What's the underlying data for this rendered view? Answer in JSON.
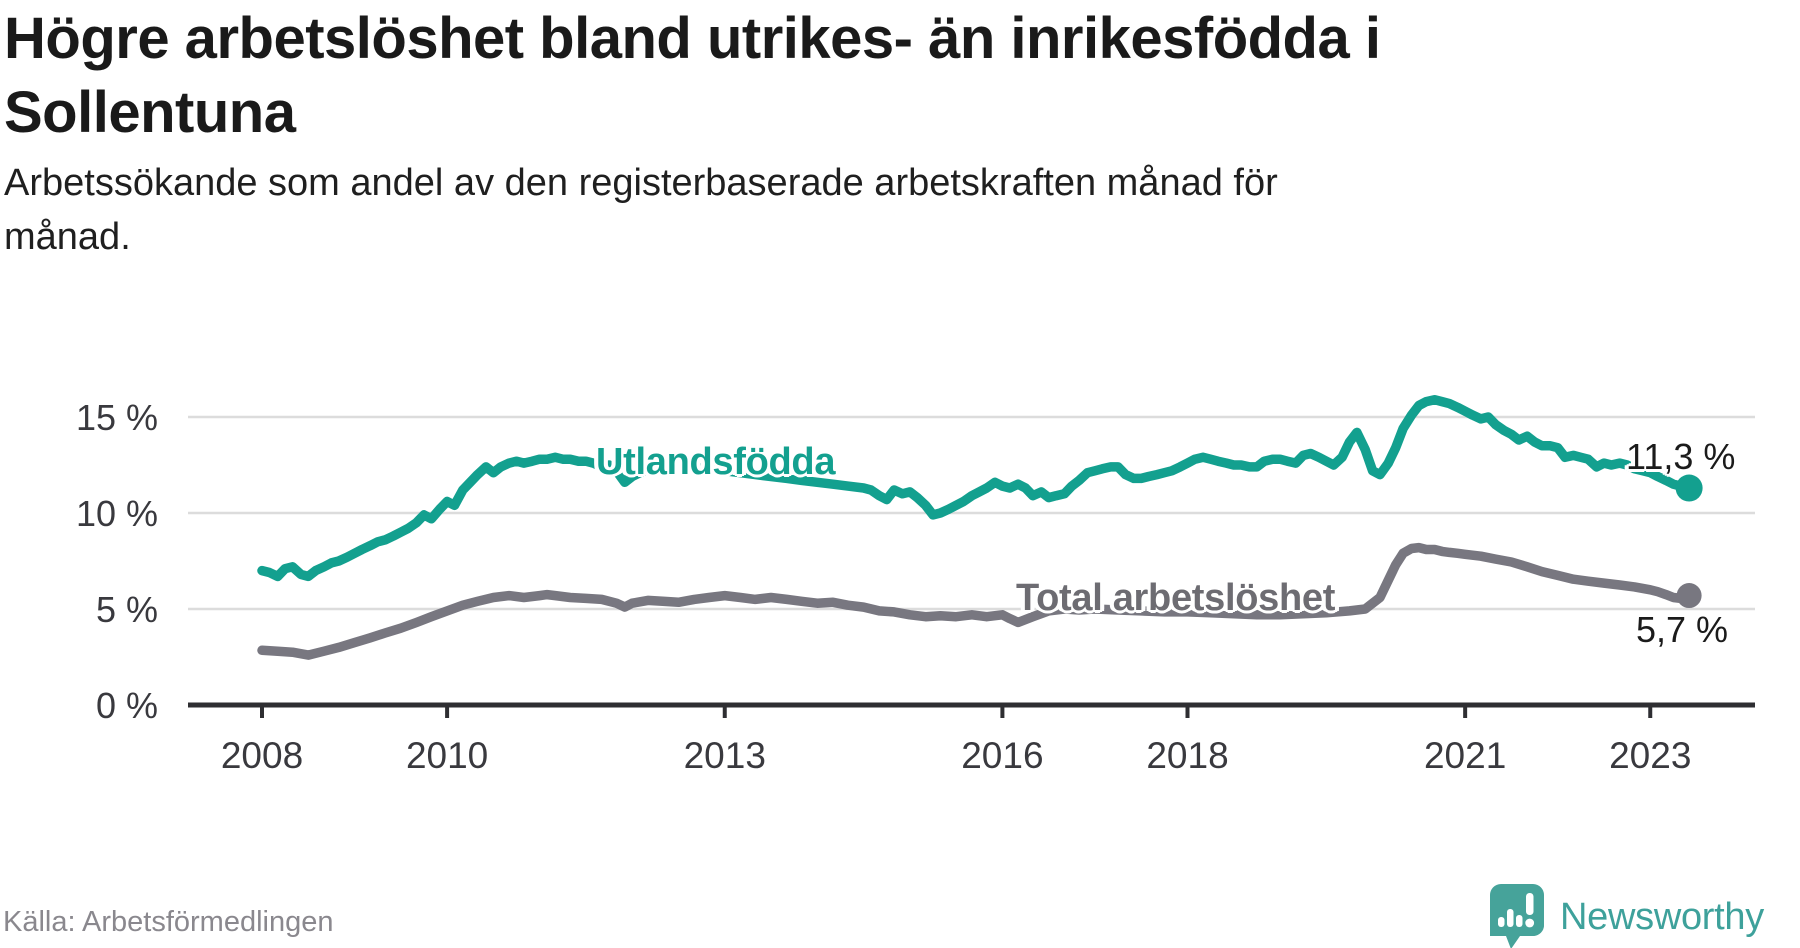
{
  "header": {
    "title": "Högre arbetslöshet bland utrikes- än inrikesfödda i\nSollentuna",
    "subtitle": "Arbetssökande som andel av den registerbaserade arbetskraften månad för\nmånad."
  },
  "footer": {
    "source": "Källa: Arbetsförmedlingen",
    "brand": "Newsworthy"
  },
  "colors": {
    "accent_teal": "#13A08F",
    "line_gray": "#787780",
    "label_gray": "#6D6C72",
    "axis_dark": "#2E2E32",
    "tick_text": "#39393E",
    "gridline": "#DCDCDC",
    "brand_teal": "#46A39A"
  },
  "chart_data": {
    "type": "line",
    "title": "Högre arbetslöshet bland utrikes- än inrikesfödda i Sollentuna",
    "subtitle": "Arbetssökande som andel av den registerbaserade arbetskraften månad för månad.",
    "source": "Källa: Arbetsförmedlingen",
    "grid": "horizontal-only",
    "legend_position": "inline-labels",
    "x_axis": {
      "ticks": [
        2008,
        2010,
        2013,
        2016,
        2018,
        2021,
        2023
      ],
      "range": [
        2007.2,
        2024.1
      ]
    },
    "y_axis": {
      "ticks": [
        0,
        5,
        10,
        15
      ],
      "tick_suffix": " %",
      "range": [
        0,
        17
      ],
      "unit": "percent"
    },
    "series": [
      {
        "name": "Utlandsfödda",
        "color": "#13A08F",
        "end_label": "11,3 %",
        "end_value": 11.3,
        "points": [
          [
            2008.0,
            7.0
          ],
          [
            2008.08,
            6.9
          ],
          [
            2008.17,
            6.7
          ],
          [
            2008.25,
            7.1
          ],
          [
            2008.33,
            7.2
          ],
          [
            2008.42,
            6.8
          ],
          [
            2008.5,
            6.7
          ],
          [
            2008.58,
            7.0
          ],
          [
            2008.67,
            7.2
          ],
          [
            2008.75,
            7.4
          ],
          [
            2008.83,
            7.5
          ],
          [
            2008.92,
            7.7
          ],
          [
            2009.0,
            7.9
          ],
          [
            2009.08,
            8.1
          ],
          [
            2009.17,
            8.3
          ],
          [
            2009.25,
            8.5
          ],
          [
            2009.33,
            8.6
          ],
          [
            2009.42,
            8.8
          ],
          [
            2009.5,
            9.0
          ],
          [
            2009.58,
            9.2
          ],
          [
            2009.67,
            9.5
          ],
          [
            2009.75,
            9.9
          ],
          [
            2009.83,
            9.7
          ],
          [
            2009.92,
            10.2
          ],
          [
            2010.0,
            10.6
          ],
          [
            2010.08,
            10.4
          ],
          [
            2010.17,
            11.2
          ],
          [
            2010.25,
            11.6
          ],
          [
            2010.33,
            12.0
          ],
          [
            2010.42,
            12.4
          ],
          [
            2010.5,
            12.1
          ],
          [
            2010.58,
            12.4
          ],
          [
            2010.67,
            12.6
          ],
          [
            2010.75,
            12.7
          ],
          [
            2010.83,
            12.6
          ],
          [
            2010.92,
            12.7
          ],
          [
            2011.0,
            12.8
          ],
          [
            2011.08,
            12.8
          ],
          [
            2011.17,
            12.9
          ],
          [
            2011.25,
            12.8
          ],
          [
            2011.33,
            12.8
          ],
          [
            2011.42,
            12.7
          ],
          [
            2011.5,
            12.7
          ],
          [
            2011.58,
            12.6
          ],
          [
            2011.67,
            12.4
          ],
          [
            2011.75,
            12.5
          ],
          [
            2011.83,
            12.2
          ],
          [
            2011.92,
            11.6
          ],
          [
            2012.0,
            11.9
          ],
          [
            2012.17,
            12.3
          ],
          [
            2012.33,
            12.4
          ],
          [
            2012.5,
            12.3
          ],
          [
            2012.67,
            12.4
          ],
          [
            2012.83,
            12.3
          ],
          [
            2013.0,
            12.2
          ],
          [
            2013.17,
            12.1
          ],
          [
            2013.33,
            12.0
          ],
          [
            2013.5,
            11.9
          ],
          [
            2013.67,
            11.8
          ],
          [
            2013.83,
            11.7
          ],
          [
            2014.0,
            11.6
          ],
          [
            2014.17,
            11.5
          ],
          [
            2014.33,
            11.4
          ],
          [
            2014.5,
            11.3
          ],
          [
            2014.58,
            11.2
          ],
          [
            2014.67,
            10.9
          ],
          [
            2014.75,
            10.7
          ],
          [
            2014.83,
            11.2
          ],
          [
            2014.92,
            11.0
          ],
          [
            2015.0,
            11.1
          ],
          [
            2015.08,
            10.8
          ],
          [
            2015.17,
            10.4
          ],
          [
            2015.25,
            9.9
          ],
          [
            2015.33,
            10.0
          ],
          [
            2015.42,
            10.2
          ],
          [
            2015.5,
            10.4
          ],
          [
            2015.58,
            10.6
          ],
          [
            2015.67,
            10.9
          ],
          [
            2015.75,
            11.1
          ],
          [
            2015.83,
            11.3
          ],
          [
            2015.92,
            11.6
          ],
          [
            2016.0,
            11.4
          ],
          [
            2016.08,
            11.3
          ],
          [
            2016.17,
            11.5
          ],
          [
            2016.25,
            11.3
          ],
          [
            2016.33,
            10.9
          ],
          [
            2016.42,
            11.1
          ],
          [
            2016.5,
            10.8
          ],
          [
            2016.58,
            10.9
          ],
          [
            2016.67,
            11.0
          ],
          [
            2016.75,
            11.4
          ],
          [
            2016.83,
            11.7
          ],
          [
            2016.92,
            12.1
          ],
          [
            2017.0,
            12.2
          ],
          [
            2017.08,
            12.3
          ],
          [
            2017.17,
            12.4
          ],
          [
            2017.25,
            12.4
          ],
          [
            2017.33,
            12.0
          ],
          [
            2017.42,
            11.8
          ],
          [
            2017.5,
            11.8
          ],
          [
            2017.58,
            11.9
          ],
          [
            2017.67,
            12.0
          ],
          [
            2017.75,
            12.1
          ],
          [
            2017.83,
            12.2
          ],
          [
            2017.92,
            12.4
          ],
          [
            2018.0,
            12.6
          ],
          [
            2018.08,
            12.8
          ],
          [
            2018.17,
            12.9
          ],
          [
            2018.25,
            12.8
          ],
          [
            2018.33,
            12.7
          ],
          [
            2018.42,
            12.6
          ],
          [
            2018.5,
            12.5
          ],
          [
            2018.58,
            12.5
          ],
          [
            2018.67,
            12.4
          ],
          [
            2018.75,
            12.4
          ],
          [
            2018.83,
            12.7
          ],
          [
            2018.92,
            12.8
          ],
          [
            2019.0,
            12.8
          ],
          [
            2019.08,
            12.7
          ],
          [
            2019.17,
            12.6
          ],
          [
            2019.25,
            13.0
          ],
          [
            2019.33,
            13.1
          ],
          [
            2019.42,
            12.9
          ],
          [
            2019.5,
            12.7
          ],
          [
            2019.58,
            12.5
          ],
          [
            2019.67,
            12.9
          ],
          [
            2019.75,
            13.7
          ],
          [
            2019.83,
            14.2
          ],
          [
            2019.92,
            13.3
          ],
          [
            2020.0,
            12.2
          ],
          [
            2020.08,
            12.0
          ],
          [
            2020.17,
            12.6
          ],
          [
            2020.25,
            13.4
          ],
          [
            2020.33,
            14.4
          ],
          [
            2020.42,
            15.1
          ],
          [
            2020.5,
            15.6
          ],
          [
            2020.58,
            15.8
          ],
          [
            2020.67,
            15.9
          ],
          [
            2020.75,
            15.8
          ],
          [
            2020.83,
            15.7
          ],
          [
            2020.92,
            15.5
          ],
          [
            2021.0,
            15.3
          ],
          [
            2021.08,
            15.1
          ],
          [
            2021.17,
            14.9
          ],
          [
            2021.25,
            15.0
          ],
          [
            2021.33,
            14.6
          ],
          [
            2021.42,
            14.3
          ],
          [
            2021.5,
            14.1
          ],
          [
            2021.58,
            13.8
          ],
          [
            2021.67,
            14.0
          ],
          [
            2021.75,
            13.7
          ],
          [
            2021.83,
            13.5
          ],
          [
            2021.92,
            13.5
          ],
          [
            2022.0,
            13.4
          ],
          [
            2022.08,
            12.9
          ],
          [
            2022.17,
            13.0
          ],
          [
            2022.25,
            12.9
          ],
          [
            2022.33,
            12.8
          ],
          [
            2022.42,
            12.4
          ],
          [
            2022.5,
            12.6
          ],
          [
            2022.58,
            12.5
          ],
          [
            2022.67,
            12.6
          ],
          [
            2022.75,
            12.5
          ],
          [
            2022.83,
            12.3
          ],
          [
            2022.92,
            12.2
          ],
          [
            2023.0,
            12.1
          ],
          [
            2023.08,
            11.9
          ],
          [
            2023.17,
            11.7
          ],
          [
            2023.25,
            11.5
          ],
          [
            2023.33,
            11.4
          ],
          [
            2023.42,
            11.3
          ]
        ]
      },
      {
        "name": "Total arbetslöshet",
        "color": "#787780",
        "end_label": "5,7 %",
        "end_value": 5.7,
        "points": [
          [
            2008.0,
            2.85
          ],
          [
            2008.17,
            2.8
          ],
          [
            2008.33,
            2.75
          ],
          [
            2008.5,
            2.6
          ],
          [
            2008.67,
            2.8
          ],
          [
            2008.83,
            3.0
          ],
          [
            2009.0,
            3.25
          ],
          [
            2009.17,
            3.5
          ],
          [
            2009.33,
            3.75
          ],
          [
            2009.5,
            4.0
          ],
          [
            2009.67,
            4.3
          ],
          [
            2009.83,
            4.6
          ],
          [
            2010.0,
            4.9
          ],
          [
            2010.17,
            5.2
          ],
          [
            2010.33,
            5.4
          ],
          [
            2010.5,
            5.6
          ],
          [
            2010.67,
            5.7
          ],
          [
            2010.83,
            5.6
          ],
          [
            2011.0,
            5.7
          ],
          [
            2011.08,
            5.75
          ],
          [
            2011.17,
            5.7
          ],
          [
            2011.33,
            5.6
          ],
          [
            2011.5,
            5.55
          ],
          [
            2011.67,
            5.5
          ],
          [
            2011.83,
            5.3
          ],
          [
            2011.92,
            5.1
          ],
          [
            2012.0,
            5.3
          ],
          [
            2012.17,
            5.45
          ],
          [
            2012.33,
            5.4
          ],
          [
            2012.5,
            5.35
          ],
          [
            2012.67,
            5.5
          ],
          [
            2012.83,
            5.6
          ],
          [
            2013.0,
            5.7
          ],
          [
            2013.17,
            5.6
          ],
          [
            2013.33,
            5.5
          ],
          [
            2013.5,
            5.6
          ],
          [
            2013.67,
            5.5
          ],
          [
            2013.83,
            5.4
          ],
          [
            2014.0,
            5.3
          ],
          [
            2014.17,
            5.35
          ],
          [
            2014.33,
            5.2
          ],
          [
            2014.5,
            5.1
          ],
          [
            2014.67,
            4.9
          ],
          [
            2014.83,
            4.85
          ],
          [
            2015.0,
            4.7
          ],
          [
            2015.17,
            4.6
          ],
          [
            2015.33,
            4.65
          ],
          [
            2015.5,
            4.6
          ],
          [
            2015.67,
            4.7
          ],
          [
            2015.83,
            4.6
          ],
          [
            2016.0,
            4.7
          ],
          [
            2016.08,
            4.5
          ],
          [
            2016.17,
            4.3
          ],
          [
            2016.33,
            4.6
          ],
          [
            2016.5,
            4.9
          ],
          [
            2016.67,
            5.0
          ],
          [
            2016.83,
            4.95
          ],
          [
            2017.0,
            5.0
          ],
          [
            2017.25,
            4.95
          ],
          [
            2017.5,
            4.9
          ],
          [
            2017.75,
            4.85
          ],
          [
            2018.0,
            4.85
          ],
          [
            2018.25,
            4.8
          ],
          [
            2018.5,
            4.75
          ],
          [
            2018.75,
            4.7
          ],
          [
            2019.0,
            4.7
          ],
          [
            2019.25,
            4.75
          ],
          [
            2019.5,
            4.8
          ],
          [
            2019.75,
            4.9
          ],
          [
            2019.92,
            5.0
          ],
          [
            2020.08,
            5.6
          ],
          [
            2020.17,
            6.5
          ],
          [
            2020.25,
            7.3
          ],
          [
            2020.33,
            7.9
          ],
          [
            2020.42,
            8.15
          ],
          [
            2020.5,
            8.2
          ],
          [
            2020.58,
            8.1
          ],
          [
            2020.67,
            8.1
          ],
          [
            2020.75,
            8.0
          ],
          [
            2020.83,
            7.95
          ],
          [
            2020.92,
            7.9
          ],
          [
            2021.0,
            7.85
          ],
          [
            2021.17,
            7.75
          ],
          [
            2021.33,
            7.6
          ],
          [
            2021.5,
            7.45
          ],
          [
            2021.67,
            7.2
          ],
          [
            2021.83,
            6.95
          ],
          [
            2022.0,
            6.75
          ],
          [
            2022.17,
            6.55
          ],
          [
            2022.33,
            6.45
          ],
          [
            2022.5,
            6.35
          ],
          [
            2022.67,
            6.25
          ],
          [
            2022.83,
            6.15
          ],
          [
            2023.0,
            6.0
          ],
          [
            2023.08,
            5.9
          ],
          [
            2023.17,
            5.75
          ],
          [
            2023.25,
            5.6
          ],
          [
            2023.33,
            5.55
          ],
          [
            2023.42,
            5.7
          ]
        ]
      }
    ]
  }
}
